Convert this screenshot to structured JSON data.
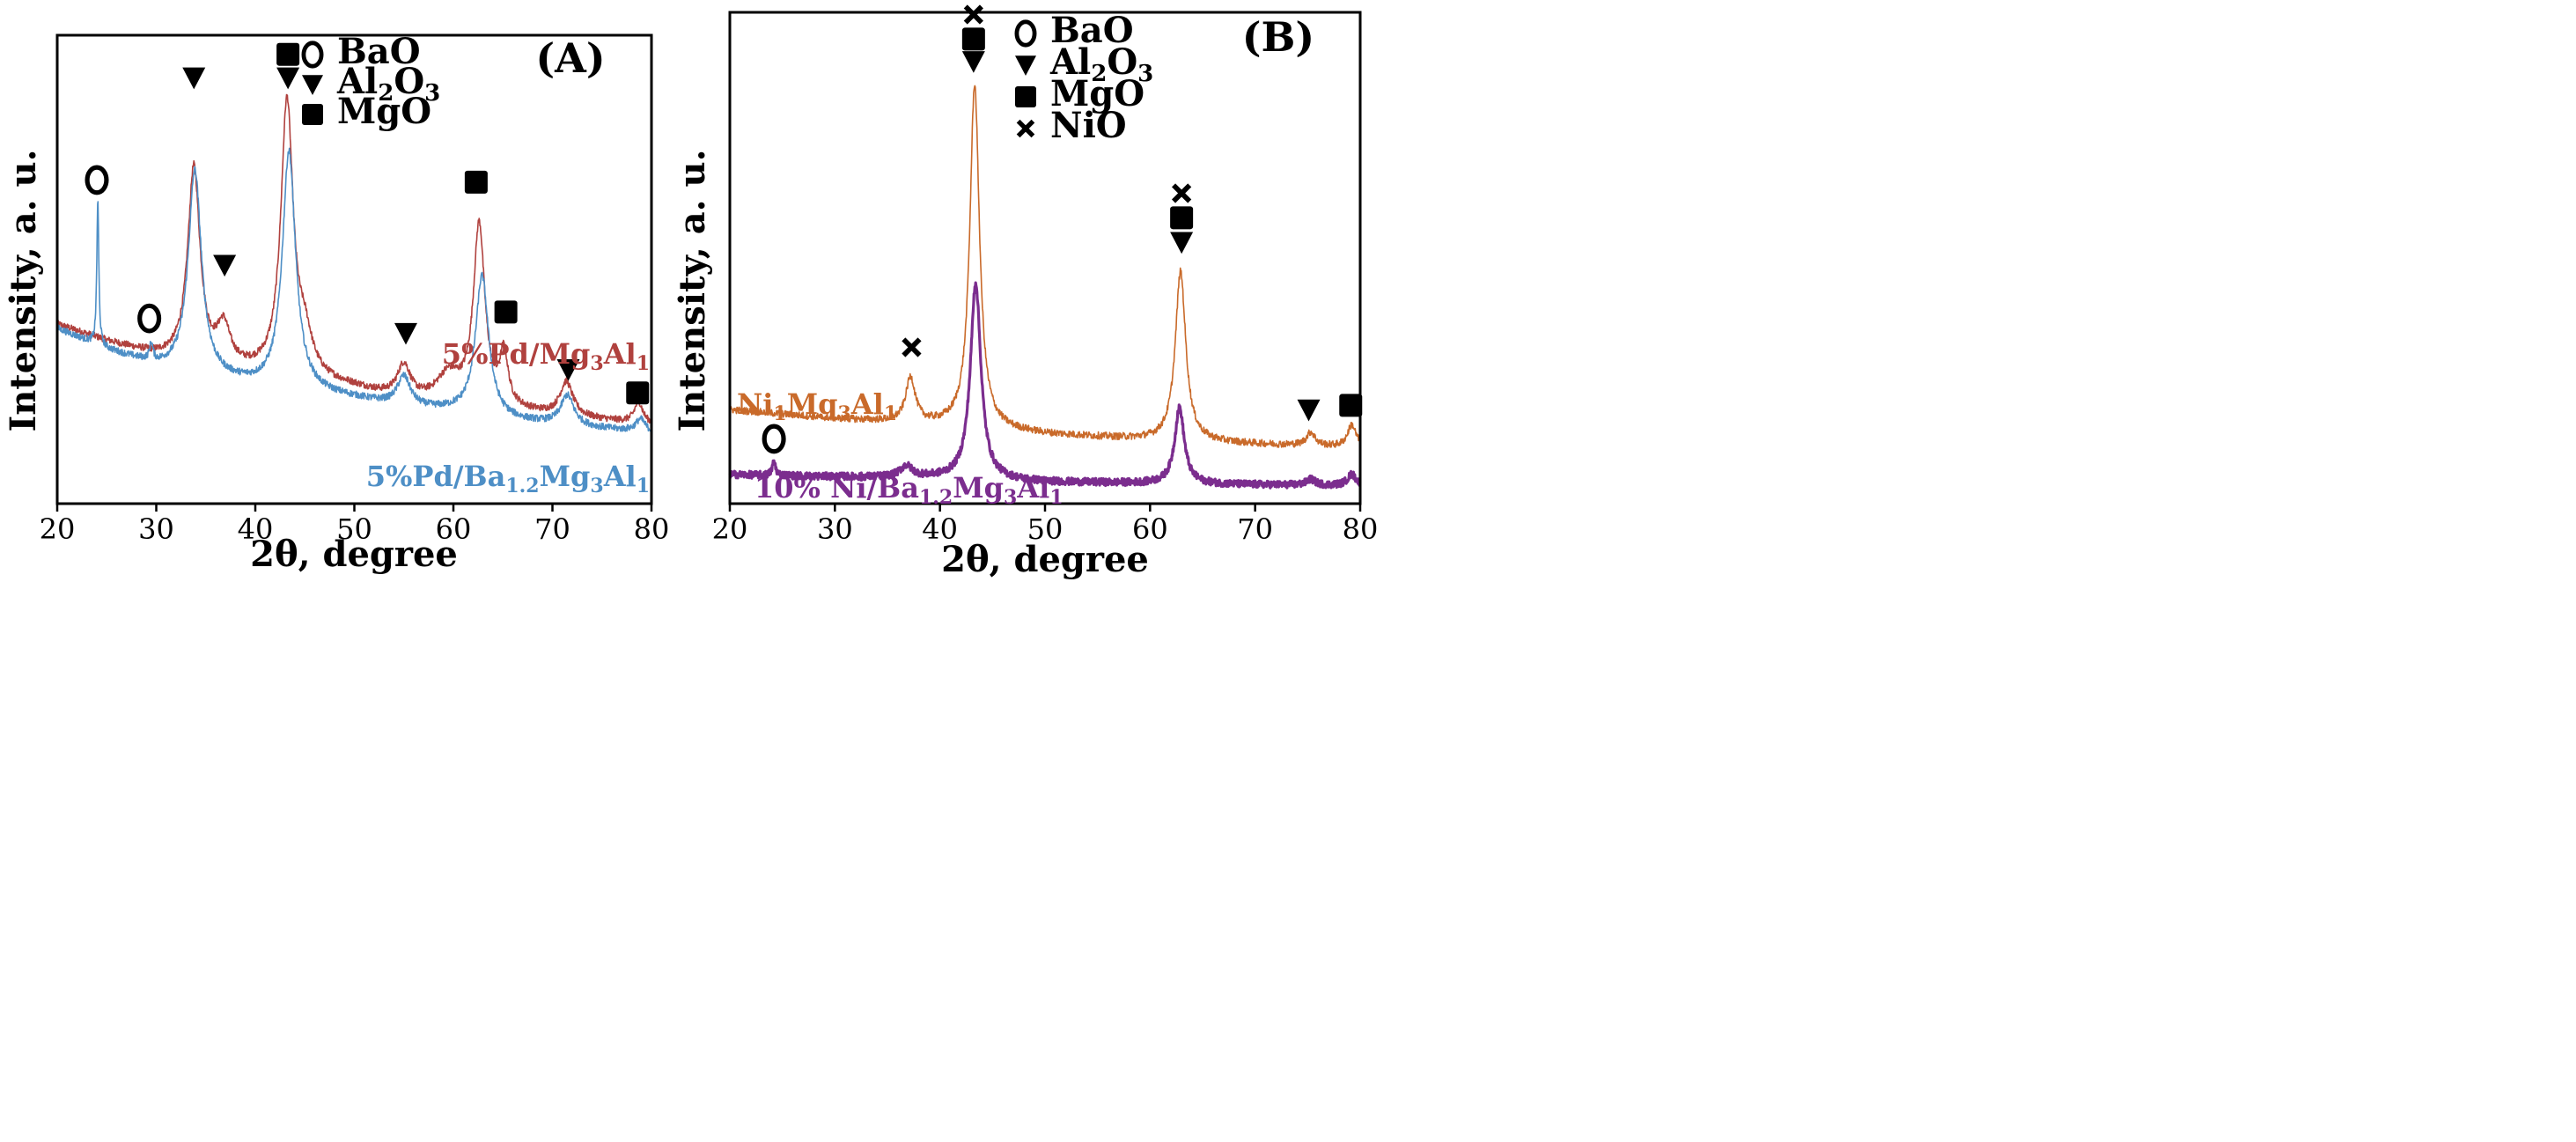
{
  "figure": {
    "panels": [
      "A",
      "B"
    ]
  },
  "chart_data": [
    {
      "type": "line",
      "panel_label": "(A)",
      "xlabel": "2θ, degree",
      "ylabel": "Intensity, a. u.",
      "xlim": [
        20,
        80
      ],
      "ylim": [
        0,
        110
      ],
      "x_ticks": [
        "20",
        "30",
        "40",
        "50",
        "60",
        "70",
        "80"
      ],
      "legend": [
        {
          "symbol": "circle",
          "label": "BaO"
        },
        {
          "symbol": "triangle",
          "label": "Al",
          "sub1": "2",
          "mid": "O",
          "sub2": "3"
        },
        {
          "symbol": "square",
          "label": "MgO"
        }
      ],
      "series": [
        {
          "name": "5%Pd/Mg3Al1",
          "label_parts": [
            [
              "5%Pd/Mg",
              false
            ],
            [
              "3",
              true
            ],
            [
              "Al",
              false
            ],
            [
              "1",
              true
            ]
          ],
          "color": "#B0413E",
          "baseline": [
            [
              20,
              42
            ],
            [
              25,
              38
            ],
            [
              30,
              34.5
            ],
            [
              35,
              32
            ],
            [
              40,
              30.5
            ],
            [
              45,
              29
            ],
            [
              50,
              27
            ],
            [
              55,
              24
            ],
            [
              60,
              23.5
            ],
            [
              65,
              22
            ],
            [
              70,
              20.5
            ],
            [
              75,
              19.5
            ],
            [
              80,
              18.5
            ]
          ],
          "peaks": [
            [
              33.8,
              46,
              0.75
            ],
            [
              36.8,
              9,
              0.8
            ],
            [
              43.2,
              64,
              0.75
            ],
            [
              45,
              8,
              0.9
            ],
            [
              55,
              8,
              0.8
            ],
            [
              59.5,
              6,
              1.4
            ],
            [
              62.6,
              42,
              0.7
            ],
            [
              65.1,
              12,
              0.5
            ],
            [
              71.4,
              8,
              0.8
            ],
            [
              78.7,
              5,
              0.5
            ]
          ]
        },
        {
          "name": "5%Pd/Ba1.2Mg3Al1",
          "label_parts": [
            [
              "5%Pd/Ba",
              false
            ],
            [
              "1.2",
              true
            ],
            [
              "Mg",
              false
            ],
            [
              "3",
              true
            ],
            [
              "Al",
              false
            ],
            [
              "1",
              true
            ]
          ],
          "color": "#4E8FC6",
          "baseline": [
            [
              20,
              41
            ],
            [
              25,
              36
            ],
            [
              30,
              32
            ],
            [
              35,
              29.5
            ],
            [
              40,
              27.5
            ],
            [
              45,
              26
            ],
            [
              50,
              24.5
            ],
            [
              55,
              22.5
            ],
            [
              60,
              21.5
            ],
            [
              65,
              19.5
            ],
            [
              70,
              18.5
            ],
            [
              75,
              17.5
            ],
            [
              80,
              16.5
            ]
          ],
          "peaks": [
            [
              24.1,
              34,
              0.12
            ],
            [
              29.5,
              4,
              0.2
            ],
            [
              33.9,
              48,
              0.8
            ],
            [
              43.4,
              56,
              0.8
            ],
            [
              55,
              7,
              0.8
            ],
            [
              62.9,
              33,
              0.8
            ],
            [
              71.5,
              7,
              0.8
            ],
            [
              78.9,
              3,
              0.6
            ]
          ]
        }
      ],
      "annotations": [
        {
          "symbol": "circle",
          "x": 24.0,
          "y": 76
        },
        {
          "symbol": "circle",
          "x": 29.3,
          "y": 43.5
        },
        {
          "symbol": "triangle",
          "x": 33.8,
          "y": 100
        },
        {
          "symbol": "square",
          "x": 43.3,
          "y": 105.5
        },
        {
          "symbol": "triangle",
          "x": 43.3,
          "y": 100
        },
        {
          "symbol": "triangle",
          "x": 36.9,
          "y": 56
        },
        {
          "symbol": "square",
          "x": 62.3,
          "y": 75.5
        },
        {
          "symbol": "triangle",
          "x": 55.2,
          "y": 40
        },
        {
          "symbol": "square",
          "x": 65.3,
          "y": 45
        },
        {
          "symbol": "triangle",
          "x": 71.6,
          "y": 31.5
        },
        {
          "symbol": "square",
          "x": 78.6,
          "y": 26
        }
      ]
    },
    {
      "type": "line",
      "panel_label": "(B)",
      "xlabel": "2θ, degree",
      "ylabel": "Intensity, a. u.",
      "xlim": [
        20,
        80
      ],
      "ylim": [
        0,
        110
      ],
      "x_ticks": [
        "20",
        "30",
        "40",
        "50",
        "60",
        "70",
        "80"
      ],
      "legend": [
        {
          "symbol": "circle",
          "label": "BaO"
        },
        {
          "symbol": "triangle",
          "label": "Al",
          "sub1": "2",
          "mid": "O",
          "sub2": "3"
        },
        {
          "symbol": "square",
          "label": "MgO"
        },
        {
          "symbol": "x",
          "label": "NiO"
        }
      ],
      "series": [
        {
          "name": "Ni1Mg3Al1",
          "label_parts": [
            [
              "Ni",
              false
            ],
            [
              "1",
              true
            ],
            [
              "Mg",
              false
            ],
            [
              "3",
              true
            ],
            [
              "Al",
              false
            ],
            [
              "1",
              true
            ]
          ],
          "color": "#C96A2A",
          "baseline": [
            [
              20,
              21
            ],
            [
              30,
              19
            ],
            [
              40,
              17.5
            ],
            [
              50,
              15.5
            ],
            [
              60,
              14.2
            ],
            [
              70,
              13.3
            ],
            [
              80,
              12.5
            ]
          ],
          "peaks": [
            [
              37.2,
              10,
              0.55
            ],
            [
              43.3,
              77,
              0.55
            ],
            [
              62.9,
              38,
              0.6
            ],
            [
              75.3,
              3,
              0.5
            ],
            [
              79.2,
              5,
              0.5
            ]
          ]
        },
        {
          "name": "10% Ni/Ba1.2Mg3Al1",
          "label_parts": [
            [
              "10% Ni/Ba",
              false
            ],
            [
              "1.2",
              true
            ],
            [
              "Mg",
              false
            ],
            [
              "3",
              true
            ],
            [
              "Al",
              false
            ],
            [
              "1",
              true
            ]
          ],
          "color": "#7B2D8E",
          "baseline": [
            [
              20,
              6.5
            ],
            [
              30,
              6
            ],
            [
              40,
              5.7
            ],
            [
              50,
              4.8
            ],
            [
              60,
              4.5
            ],
            [
              70,
              4.2
            ],
            [
              80,
              4
            ]
          ],
          "peaks": [
            [
              24.2,
              3,
              0.2
            ],
            [
              36.8,
              2.5,
              0.7
            ],
            [
              43.4,
              44,
              0.6
            ],
            [
              62.8,
              17,
              0.55
            ],
            [
              75.3,
              1.3,
              0.5
            ],
            [
              79.2,
              2.5,
              0.5
            ]
          ]
        }
      ],
      "annotations": [
        {
          "symbol": "x",
          "x": 43.2,
          "y": 109.5
        },
        {
          "symbol": "square",
          "x": 43.2,
          "y": 104
        },
        {
          "symbol": "triangle",
          "x": 43.2,
          "y": 99
        },
        {
          "symbol": "x",
          "x": 63.0,
          "y": 69.5
        },
        {
          "symbol": "square",
          "x": 63.0,
          "y": 64
        },
        {
          "symbol": "triangle",
          "x": 63.0,
          "y": 58.5
        },
        {
          "symbol": "x",
          "x": 37.3,
          "y": 35
        },
        {
          "symbol": "circle",
          "x": 24.2,
          "y": 14.5
        },
        {
          "symbol": "triangle",
          "x": 75.1,
          "y": 21
        },
        {
          "symbol": "square",
          "x": 79.1,
          "y": 22
        }
      ]
    }
  ]
}
